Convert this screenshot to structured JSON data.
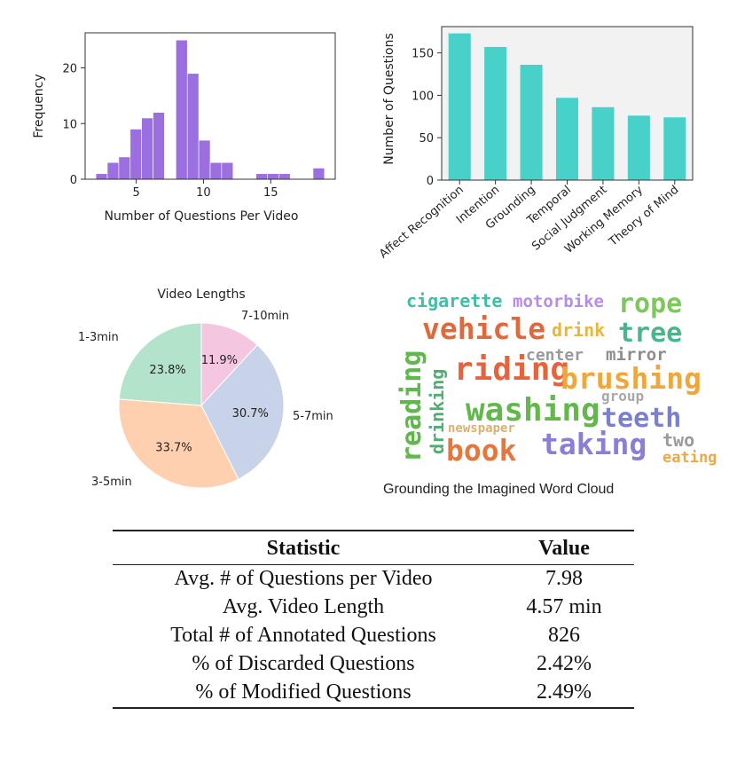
{
  "chart_data": [
    {
      "type": "bar",
      "subtype": "histogram",
      "title": "",
      "xlabel": "Number of Questions Per Video",
      "ylabel": "Frequency",
      "xlim": [
        1.2,
        19.8
      ],
      "ylim": [
        0,
        26.3
      ],
      "xticks": [
        5,
        10,
        15
      ],
      "yticks": [
        0,
        10,
        20
      ],
      "bin_width": 0.85,
      "bins": [
        {
          "x": 2.0,
          "count": 1
        },
        {
          "x": 2.85,
          "count": 3
        },
        {
          "x": 3.7,
          "count": 4
        },
        {
          "x": 4.55,
          "count": 9
        },
        {
          "x": 5.4,
          "count": 11
        },
        {
          "x": 6.25,
          "count": 12
        },
        {
          "x": 7.1,
          "count": 0
        },
        {
          "x": 7.95,
          "count": 25
        },
        {
          "x": 8.8,
          "count": 19
        },
        {
          "x": 9.65,
          "count": 7
        },
        {
          "x": 10.5,
          "count": 3
        },
        {
          "x": 11.35,
          "count": 3
        },
        {
          "x": 12.2,
          "count": 0
        },
        {
          "x": 13.05,
          "count": 0
        },
        {
          "x": 13.9,
          "count": 1
        },
        {
          "x": 14.75,
          "count": 1
        },
        {
          "x": 15.6,
          "count": 1
        },
        {
          "x": 16.45,
          "count": 0
        },
        {
          "x": 17.3,
          "count": 0
        },
        {
          "x": 18.15,
          "count": 2
        }
      ],
      "color": "#9b6fe0"
    },
    {
      "type": "bar",
      "title": "",
      "xlabel": "",
      "ylabel": "Number of Questions",
      "ylim": [
        0,
        181
      ],
      "yticks": [
        0,
        50,
        100,
        150
      ],
      "categories": [
        "Affect Recognition",
        "Intention",
        "Grounding",
        "Temporal",
        "Social Judgment",
        "Working Memory",
        "Theory of Mind"
      ],
      "values": [
        173,
        157,
        136,
        97,
        86,
        76,
        74
      ],
      "color": "#48d1c8"
    },
    {
      "type": "pie",
      "title": "Video Lengths",
      "labels": [
        "7-10min",
        "5-7min",
        "3-5min",
        "1-3min"
      ],
      "values": [
        11.9,
        30.7,
        33.7,
        23.8
      ],
      "value_labels": [
        "11.9%",
        "30.7%",
        "33.7%",
        "23.8%"
      ],
      "colors": [
        "#f5c6e0",
        "#c8d2e8",
        "#ffd0b0",
        "#b4e3cc"
      ]
    }
  ],
  "wordcloud": {
    "caption": "Grounding the Imagined Word Cloud",
    "words": [
      {
        "text": "cigarette",
        "color": "#3dbfa8"
      },
      {
        "text": "motorbike",
        "color": "#b58de8"
      },
      {
        "text": "rope",
        "color": "#7cc85a"
      },
      {
        "text": "vehicle",
        "color": "#e0693c"
      },
      {
        "text": "drink",
        "color": "#e6b63e"
      },
      {
        "text": "tree",
        "color": "#45b78a"
      },
      {
        "text": "reading",
        "color": "#5fb84a"
      },
      {
        "text": "drinking",
        "color": "#4fae70"
      },
      {
        "text": "center",
        "color": "#9a9a9a"
      },
      {
        "text": "mirror",
        "color": "#8c8c8c"
      },
      {
        "text": "riding",
        "color": "#e8623c"
      },
      {
        "text": "brushing",
        "color": "#f0a63a"
      },
      {
        "text": "group",
        "color": "#a8a8a8"
      },
      {
        "text": "washing",
        "color": "#62b84a"
      },
      {
        "text": "teeth",
        "color": "#7b7fd0"
      },
      {
        "text": "newspaper",
        "color": "#d8b070"
      },
      {
        "text": "book",
        "color": "#e6763c"
      },
      {
        "text": "taking",
        "color": "#8a7fd6"
      },
      {
        "text": "two",
        "color": "#9a9a9a"
      },
      {
        "text": "eating",
        "color": "#e8a94a"
      }
    ]
  },
  "table": {
    "headers": [
      "Statistic",
      "Value"
    ],
    "rows": [
      [
        "Avg. # of Questions per Video",
        "7.98"
      ],
      [
        "Avg. Video Length",
        "4.57 min"
      ],
      [
        "Total # of Annotated Questions",
        "826"
      ],
      [
        "% of Discarded Questions",
        "2.42%"
      ],
      [
        "% of Modified Questions",
        "2.49%"
      ]
    ]
  }
}
